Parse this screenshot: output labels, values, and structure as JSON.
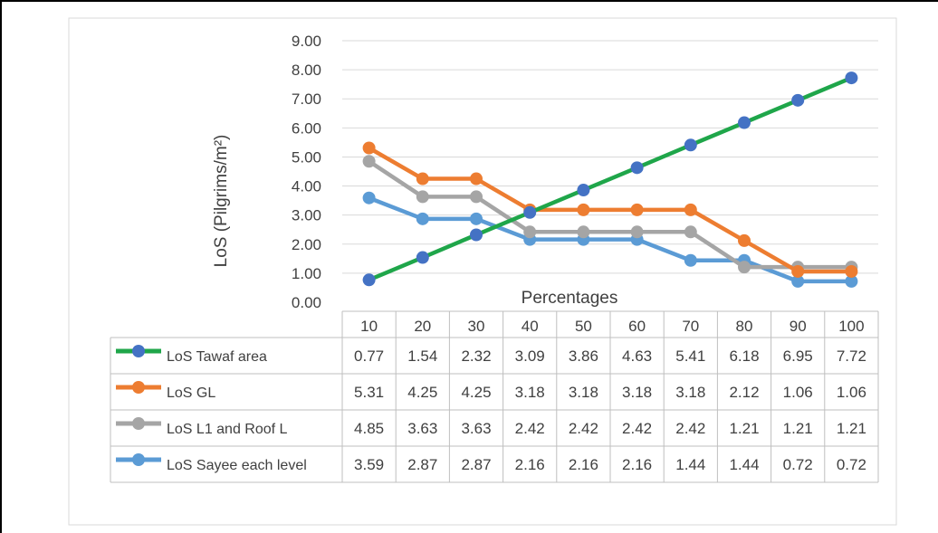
{
  "chart_data": {
    "type": "line",
    "ylabel": "LoS (Pilgrims/m²)",
    "xlabel": "Percentages",
    "categories": [
      "10",
      "20",
      "30",
      "40",
      "50",
      "60",
      "70",
      "80",
      "90",
      "100"
    ],
    "yticks": [
      "0.00",
      "1.00",
      "2.00",
      "3.00",
      "4.00",
      "5.00",
      "6.00",
      "7.00",
      "8.00",
      "9.00"
    ],
    "ylim": [
      0,
      9
    ],
    "grid": true,
    "legend_placement": "data-table",
    "series": [
      {
        "name": "LoS Tawaf area",
        "color": "#1fa64a",
        "marker": "#4472c4",
        "values": [
          0.77,
          1.54,
          2.32,
          3.09,
          3.86,
          4.63,
          5.41,
          6.18,
          6.95,
          7.72
        ],
        "labels": [
          "0.77",
          "1.54",
          "2.32",
          "3.09",
          "3.86",
          "4.63",
          "5.41",
          "6.18",
          "6.95",
          "7.72"
        ]
      },
      {
        "name": "LoS GL",
        "color": "#ed7d31",
        "marker": "#ed7d31",
        "values": [
          5.31,
          4.25,
          4.25,
          3.18,
          3.18,
          3.18,
          3.18,
          2.12,
          1.06,
          1.06
        ],
        "labels": [
          "5.31",
          "4.25",
          "4.25",
          "3.18",
          "3.18",
          "3.18",
          "3.18",
          "2.12",
          "1.06",
          "1.06"
        ]
      },
      {
        "name": "LoS L1 and Roof L",
        "color": "#a5a5a5",
        "marker": "#a5a5a5",
        "values": [
          4.85,
          3.63,
          3.63,
          2.42,
          2.42,
          2.42,
          2.42,
          1.21,
          1.21,
          1.21
        ],
        "labels": [
          "4.85",
          "3.63",
          "3.63",
          "2.42",
          "2.42",
          "2.42",
          "2.42",
          "1.21",
          "1.21",
          "1.21"
        ]
      },
      {
        "name": "LoS Sayee each level",
        "color": "#5b9bd5",
        "marker": "#5b9bd5",
        "values": [
          3.59,
          2.87,
          2.87,
          2.16,
          2.16,
          2.16,
          1.44,
          1.44,
          0.72,
          0.72
        ],
        "labels": [
          "3.59",
          "2.87",
          "2.87",
          "2.16",
          "2.16",
          "2.16",
          "1.44",
          "1.44",
          "0.72",
          "0.72"
        ]
      }
    ]
  }
}
